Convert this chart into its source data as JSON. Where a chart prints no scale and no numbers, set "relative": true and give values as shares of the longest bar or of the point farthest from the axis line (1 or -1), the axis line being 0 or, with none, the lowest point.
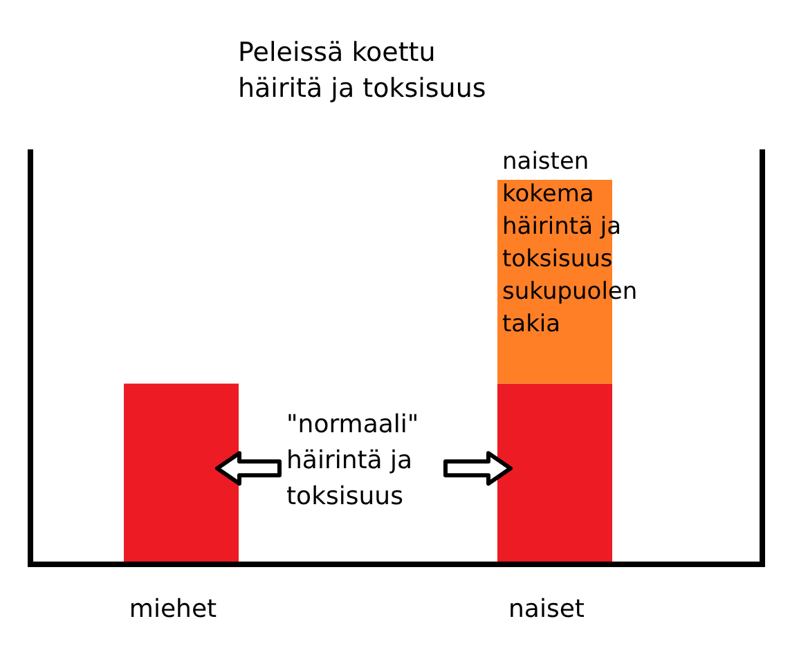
{
  "chart_data": {
    "type": "bar",
    "title": "Peleissä koettu\nhäiritä ja toksisuus",
    "relative": true,
    "stacked": true,
    "categories": [
      "miehet",
      "naiset"
    ],
    "series": [
      {
        "name": "\"normaali\"\nhäirintä ja\ntoksisuus",
        "color": "#ed1c24",
        "values": [
          0.47,
          0.47
        ]
      },
      {
        "name": "naisten\nkokema\nhäirintä ja\ntoksisuus\nsukupuolen\ntakia",
        "color": "#ff7f27",
        "values": [
          0,
          0.53
        ]
      }
    ]
  }
}
